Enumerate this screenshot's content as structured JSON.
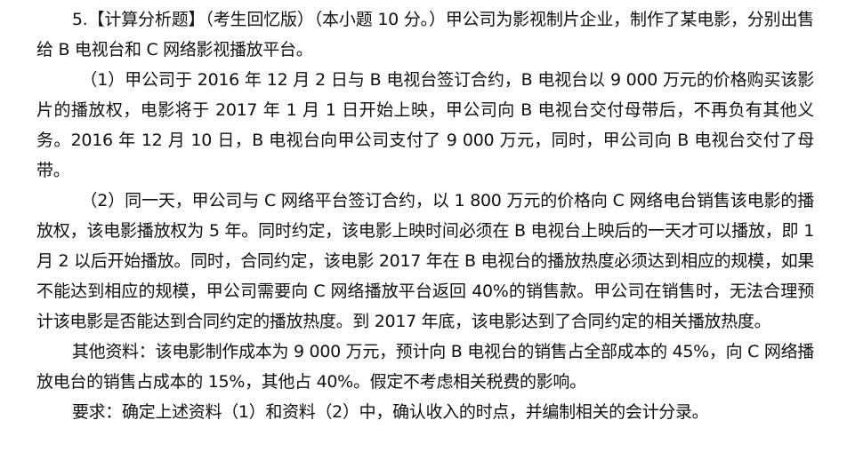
{
  "question": {
    "intro": "5.【计算分析题】（考生回忆版）（本小题 10 分。）甲公司为影视制片企业，制作了某电影，分别出售给 B 电视台和 C 网络影视播放平台。",
    "item1": "（1）甲公司于 2016 年 12 月 2 日与 B 电视台签订合约，B 电视台以 9 000 万元的价格购买该影片的播放权，电影将于 2017 年 1 月 1 日开始上映，甲公司向 B 电视台交付母带后，不再负有其他义务。2016 年 12 月 10 日，B 电视台向甲公司支付了 9 000 万元，同时，甲公司向 B 电视台交付了母带。",
    "item2": "（2）同一天，甲公司与 C 网络平台签订合约，以 1 800 万元的价格向 C 网络电台销售该电影的播放权，该电影播放权为 5 年。同时约定，该电影上映时间必须在 B 电视台上映后的一天才可以播放，即 1 月 2 以后开始播放。同时，合同约定，该电影 2017 年在 B 电视台的播放热度必须达到相应的规模，如果不能达到相应的规模，甲公司需要向 C 网络播放平台返回 40%的销售款。甲公司在销售时，无法合理预计该电影是否能达到合同约定的播放热度。到 2017 年底，该电影达到了合同约定的相关播放热度。",
    "other_info": "其他资料：该电影制作成本为 9 000 万元，预计向 B 电视台的销售占全部成本的 45%，向 C 网络播放电台的销售占成本的 15%，其他占 40%。假定不考虑相关税费的影响。",
    "requirement": "要求：确定上述资料（1）和资料（2）中，确认收入的时点，并编制相关的会计分录。"
  }
}
